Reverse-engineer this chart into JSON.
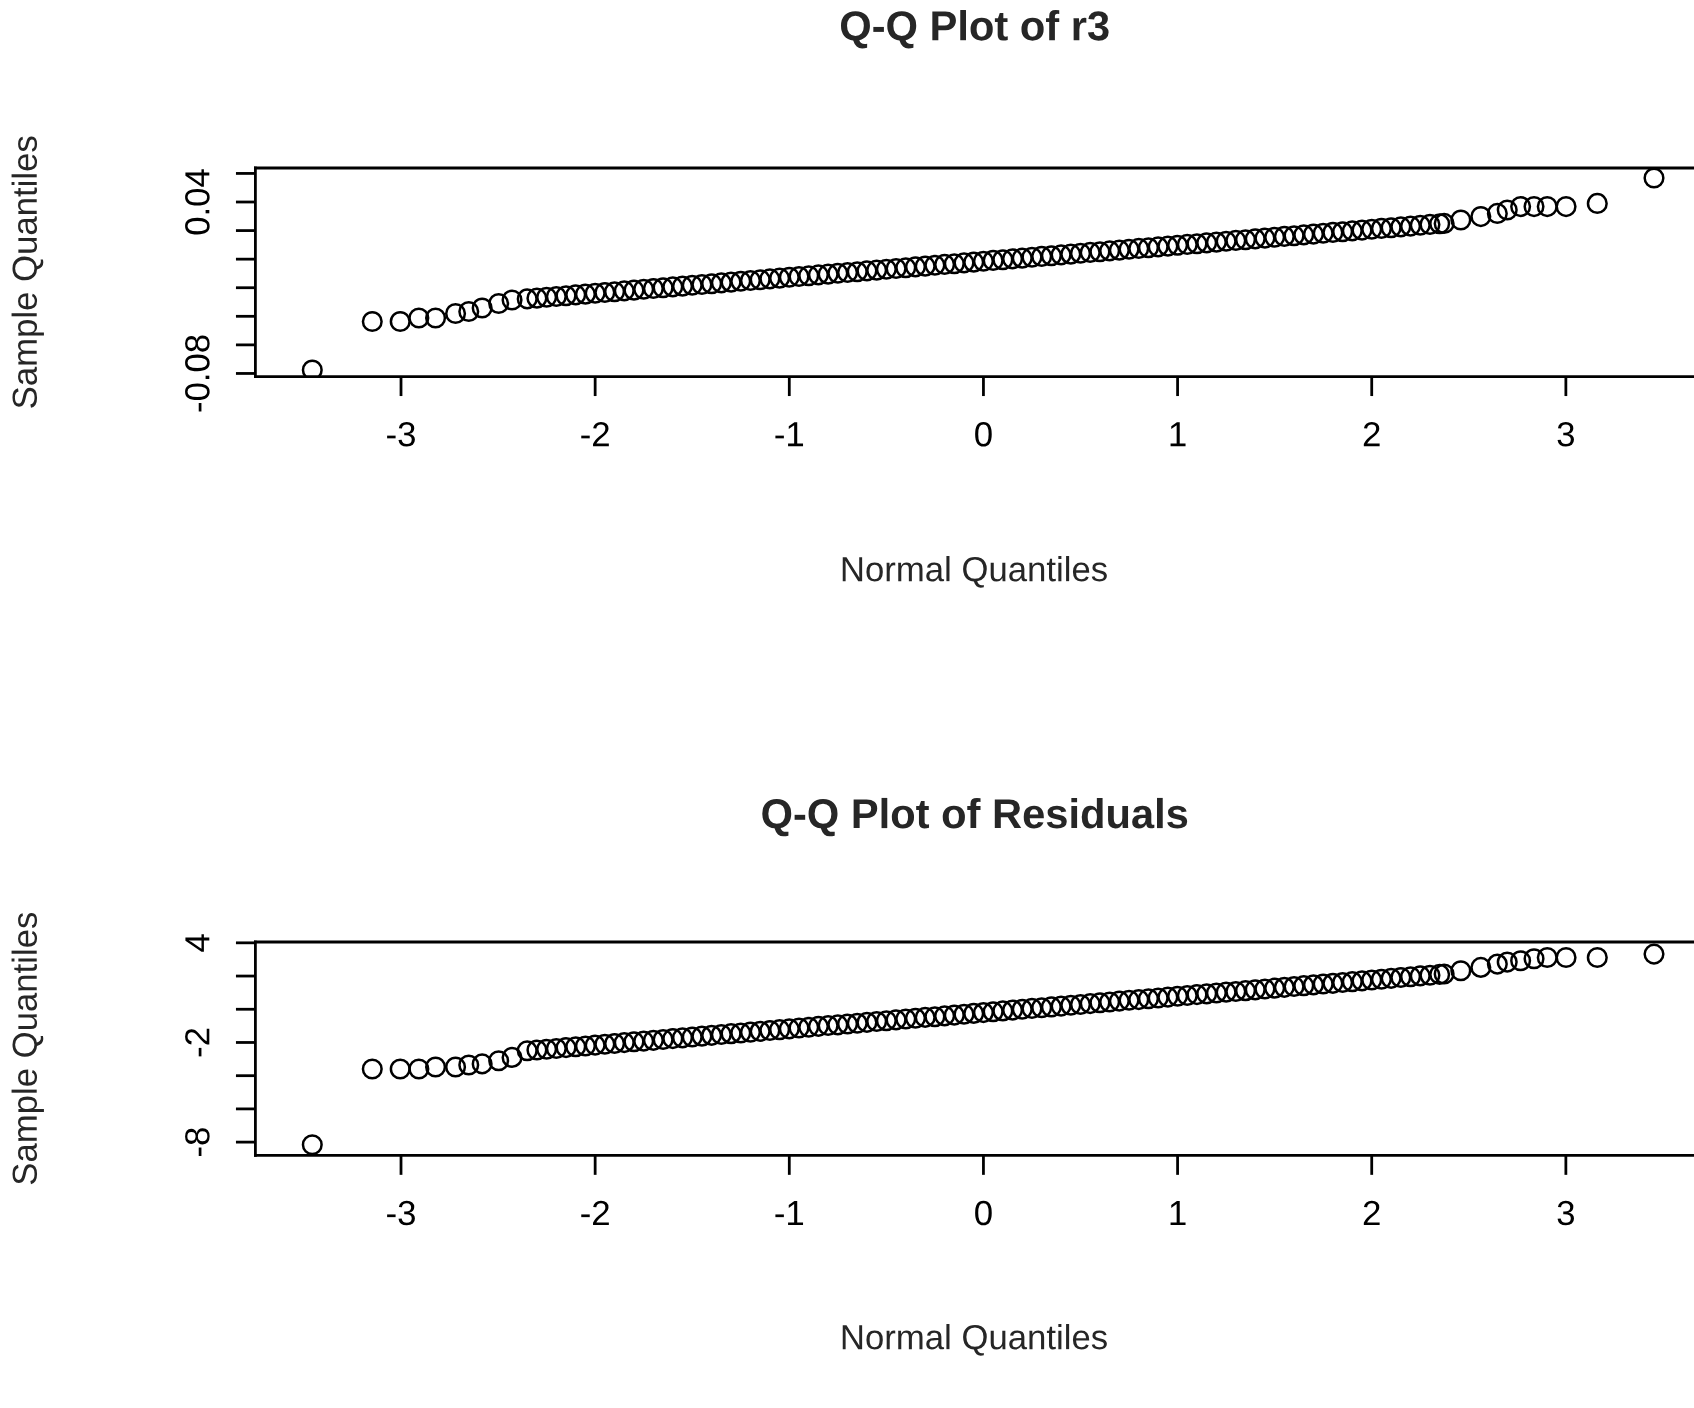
{
  "chart_data": [
    {
      "type": "scatter",
      "title": "Q-Q Plot of r3",
      "xlabel": "Normal Quantiles",
      "ylabel": "Sample Quantiles",
      "marker": "circle",
      "grid": false,
      "xlim": [
        -3.75,
        3.66
      ],
      "xticks": [
        -3,
        -2,
        -1,
        0,
        1,
        2,
        3
      ],
      "ylim": [
        -0.0822,
        0.0638
      ],
      "yticks": [
        -0.08,
        {
          "value": -0.06,
          "label": null
        },
        {
          "value": -0.04,
          "label": null
        },
        {
          "value": -0.02,
          "label": null
        },
        {
          "value": 0.0,
          "label": null
        },
        {
          "value": 0.02,
          "label": null
        },
        0.04,
        {
          "value": 0.06,
          "label": null
        }
      ],
      "x": [
        -3.457,
        -3.148,
        -3.004,
        -2.908,
        -2.822,
        -2.719,
        -2.651,
        -2.582,
        -2.497,
        -2.428,
        -2.35,
        -2.3,
        -2.25,
        -2.2,
        -2.15,
        -2.1,
        -2.05,
        -2.0,
        -1.95,
        -1.9,
        -1.85,
        -1.8,
        -1.75,
        -1.7,
        -1.65,
        -1.6,
        -1.55,
        -1.5,
        -1.45,
        -1.4,
        -1.35,
        -1.3,
        -1.25,
        -1.2,
        -1.15,
        -1.1,
        -1.05,
        -1.0,
        -0.95,
        -0.9,
        -0.85,
        -0.8,
        -0.75,
        -0.7,
        -0.65,
        -0.6,
        -0.55,
        -0.5,
        -0.45,
        -0.4,
        -0.35,
        -0.3,
        -0.25,
        -0.2,
        -0.15,
        -0.1,
        -0.05,
        0.0,
        0.05,
        0.1,
        0.15,
        0.2,
        0.25,
        0.3,
        0.35,
        0.4,
        0.45,
        0.5,
        0.55,
        0.6,
        0.65,
        0.7,
        0.75,
        0.8,
        0.85,
        0.9,
        0.95,
        1.0,
        1.05,
        1.1,
        1.15,
        1.2,
        1.25,
        1.3,
        1.35,
        1.4,
        1.45,
        1.5,
        1.55,
        1.6,
        1.65,
        1.7,
        1.75,
        1.8,
        1.85,
        1.9,
        1.95,
        2.0,
        2.05,
        2.1,
        2.15,
        2.2,
        2.25,
        2.3,
        2.35,
        2.373,
        2.459,
        2.562,
        2.647,
        2.698,
        2.767,
        2.836,
        2.904,
        3.001,
        3.162,
        3.454
      ],
      "series": [
        {
          "color": "#000000",
          "values": [
            -0.0776,
            -0.0436,
            -0.0436,
            -0.0412,
            -0.0412,
            -0.038,
            -0.0366,
            -0.0342,
            -0.031,
            -0.0286,
            -0.0278,
            -0.0273,
            -0.0267,
            -0.0261,
            -0.0256,
            -0.025,
            -0.0245,
            -0.0239,
            -0.0233,
            -0.0228,
            -0.0222,
            -0.0217,
            -0.0211,
            -0.0205,
            -0.02,
            -0.0194,
            -0.0189,
            -0.0183,
            -0.0177,
            -0.0172,
            -0.0166,
            -0.0161,
            -0.0155,
            -0.0149,
            -0.0144,
            -0.0138,
            -0.0133,
            -0.0127,
            -0.0121,
            -0.0116,
            -0.011,
            -0.0105,
            -0.0099,
            -0.0093,
            -0.0088,
            -0.0082,
            -0.0077,
            -0.0071,
            -0.0065,
            -0.006,
            -0.0054,
            -0.0049,
            -0.0043,
            -0.0037,
            -0.0032,
            -0.0026,
            -0.0021,
            -0.0015,
            -0.0009,
            -0.0004,
            0.0002,
            0.0007,
            0.0013,
            0.0019,
            0.0024,
            0.003,
            0.0035,
            0.0041,
            0.0047,
            0.0052,
            0.0058,
            0.0063,
            0.0069,
            0.0075,
            0.008,
            0.0086,
            0.0091,
            0.0097,
            0.0103,
            0.0108,
            0.0114,
            0.0119,
            0.0125,
            0.0131,
            0.0136,
            0.0142,
            0.0147,
            0.0153,
            0.0159,
            0.0164,
            0.017,
            0.0175,
            0.0181,
            0.0187,
            0.0192,
            0.0198,
            0.0203,
            0.0209,
            0.0215,
            0.022,
            0.0226,
            0.0231,
            0.0237,
            0.0243,
            0.0248,
            0.025,
            0.0274,
            0.0298,
            0.032,
            0.0344,
            0.0368,
            0.0368,
            0.0368,
            0.0368,
            0.039,
            0.0568
          ]
        }
      ]
    },
    {
      "type": "scatter",
      "title": "Q-Q Plot of Residuals",
      "xlabel": "Normal Quantiles",
      "ylabel": "Sample Quantiles",
      "marker": "circle",
      "grid": false,
      "xlim": [
        -3.75,
        3.66
      ],
      "xticks": [
        -3,
        -2,
        -1,
        0,
        1,
        2,
        3
      ],
      "ylim": [
        -8.8,
        4.05
      ],
      "yticks": [
        -8,
        {
          "value": -6,
          "label": null
        },
        {
          "value": -4,
          "label": null
        },
        -2,
        {
          "value": 0,
          "label": null
        },
        {
          "value": 2,
          "label": null
        },
        4
      ],
      "x": [
        -3.457,
        -3.148,
        -3.004,
        -2.908,
        -2.822,
        -2.719,
        -2.651,
        -2.582,
        -2.497,
        -2.428,
        -2.35,
        -2.3,
        -2.25,
        -2.2,
        -2.15,
        -2.1,
        -2.05,
        -2.0,
        -1.95,
        -1.9,
        -1.85,
        -1.8,
        -1.75,
        -1.7,
        -1.65,
        -1.6,
        -1.55,
        -1.5,
        -1.45,
        -1.4,
        -1.35,
        -1.3,
        -1.25,
        -1.2,
        -1.15,
        -1.1,
        -1.05,
        -1.0,
        -0.95,
        -0.9,
        -0.85,
        -0.8,
        -0.75,
        -0.7,
        -0.65,
        -0.6,
        -0.55,
        -0.5,
        -0.45,
        -0.4,
        -0.35,
        -0.3,
        -0.25,
        -0.2,
        -0.15,
        -0.1,
        -0.05,
        0.0,
        0.05,
        0.1,
        0.15,
        0.2,
        0.25,
        0.3,
        0.35,
        0.4,
        0.45,
        0.5,
        0.55,
        0.6,
        0.65,
        0.7,
        0.75,
        0.8,
        0.85,
        0.9,
        0.95,
        1.0,
        1.05,
        1.1,
        1.15,
        1.2,
        1.25,
        1.3,
        1.35,
        1.4,
        1.45,
        1.5,
        1.55,
        1.6,
        1.65,
        1.7,
        1.75,
        1.8,
        1.85,
        1.9,
        1.95,
        2.0,
        2.05,
        2.1,
        2.15,
        2.2,
        2.25,
        2.3,
        2.35,
        2.373,
        2.459,
        2.562,
        2.647,
        2.698,
        2.767,
        2.836,
        2.904,
        3.001,
        3.162,
        3.454
      ],
      "series": [
        {
          "color": "#000000",
          "values": [
            -8.16,
            -3.6,
            -3.6,
            -3.6,
            -3.48,
            -3.48,
            -3.36,
            -3.29,
            -3.1,
            -2.9,
            -2.5,
            -2.45,
            -2.41,
            -2.36,
            -2.31,
            -2.26,
            -2.21,
            -2.16,
            -2.11,
            -2.06,
            -2.01,
            -1.96,
            -1.92,
            -1.87,
            -1.82,
            -1.77,
            -1.72,
            -1.67,
            -1.62,
            -1.57,
            -1.52,
            -1.47,
            -1.43,
            -1.38,
            -1.33,
            -1.28,
            -1.23,
            -1.18,
            -1.13,
            -1.08,
            -1.03,
            -0.98,
            -0.94,
            -0.89,
            -0.84,
            -0.79,
            -0.74,
            -0.69,
            -0.64,
            -0.59,
            -0.54,
            -0.49,
            -0.45,
            -0.4,
            -0.35,
            -0.3,
            -0.25,
            -0.2,
            -0.15,
            -0.1,
            -0.05,
            0.0,
            0.05,
            0.09,
            0.14,
            0.19,
            0.24,
            0.29,
            0.34,
            0.39,
            0.44,
            0.49,
            0.54,
            0.58,
            0.63,
            0.68,
            0.73,
            0.78,
            0.83,
            0.88,
            0.93,
            0.98,
            1.03,
            1.07,
            1.12,
            1.17,
            1.22,
            1.27,
            1.32,
            1.37,
            1.42,
            1.47,
            1.52,
            1.56,
            1.61,
            1.66,
            1.71,
            1.76,
            1.81,
            1.86,
            1.91,
            1.96,
            2.01,
            2.05,
            2.1,
            2.12,
            2.32,
            2.52,
            2.72,
            2.84,
            2.92,
            3.04,
            3.12,
            3.12,
            3.12,
            3.32
          ]
        }
      ]
    }
  ]
}
